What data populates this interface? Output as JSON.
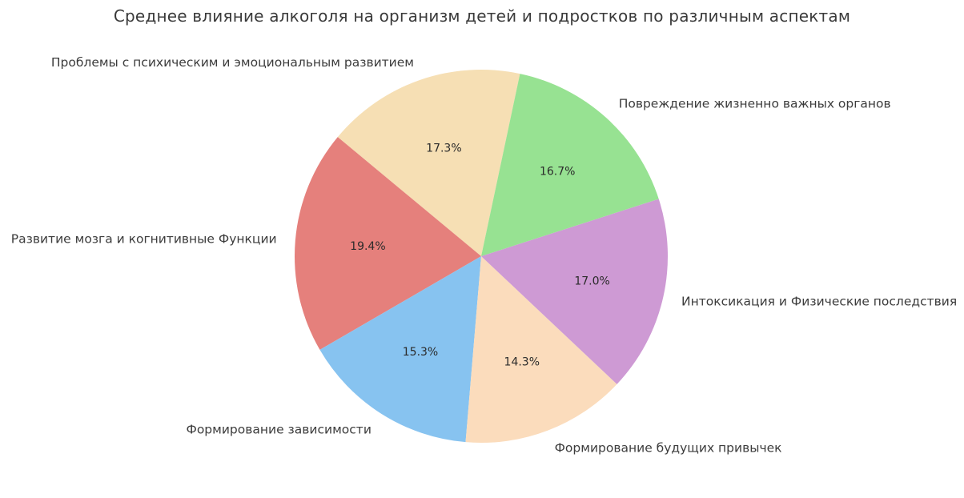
{
  "page": {
    "background": "#ffffff",
    "text_color": "#3a3a3a"
  },
  "chart_data": {
    "type": "pie",
    "title": "Среднее влияние алкоголя на организм детей и подростков по различным аспектам",
    "legend": "none",
    "direction": "counterclockwise",
    "start_angle_deg": 78,
    "label_distance": 1.1,
    "pct_distance": 0.61,
    "slices": [
      {
        "label": "Проблемы с психическим и эмоциональным развитием",
        "value": 17.3,
        "pct_label": "17.3%",
        "color": "#F6DFB4"
      },
      {
        "label": "Развитие мозга и когнитивные Функции",
        "value": 19.4,
        "pct_label": "19.4%",
        "color": "#E5807C"
      },
      {
        "label": "Формирование зависимости",
        "value": 15.3,
        "pct_label": "15.3%",
        "color": "#87C3F0"
      },
      {
        "label": "Формирование будущих привычек",
        "value": 14.3,
        "pct_label": "14.3%",
        "color": "#FBDCBC"
      },
      {
        "label": "Интоксикация и Физические последствия",
        "value": 17.0,
        "pct_label": "17.0%",
        "color": "#CE9AD4"
      },
      {
        "label": "Повреждение жизненно важных органов",
        "value": 16.7,
        "pct_label": "16.7%",
        "color": "#97E292"
      }
    ]
  }
}
